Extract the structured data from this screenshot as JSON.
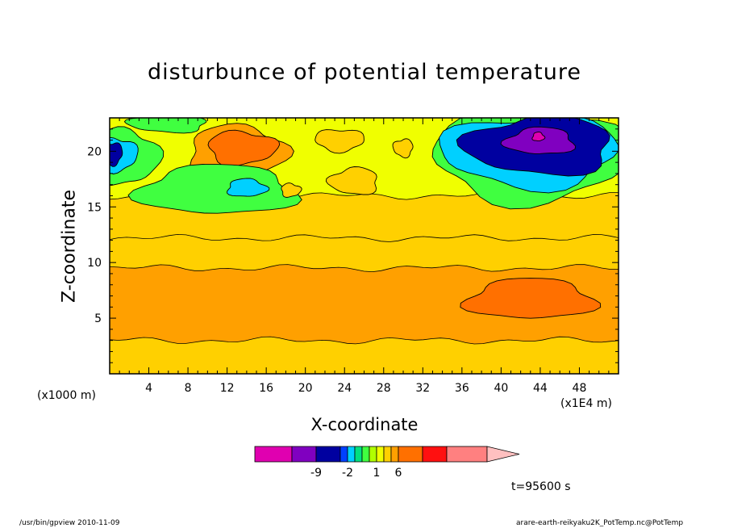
{
  "chart_data": {
    "type": "heatmap",
    "title": "disturbunce of potential temperature",
    "xlabel": "X-coordinate",
    "ylabel": "Z-coordinate",
    "x_unit": "(x1E4 m)",
    "y_unit": "(x1000 m)",
    "xlim": [
      0,
      52
    ],
    "ylim": [
      0,
      23
    ],
    "xticks": [
      4,
      8,
      12,
      16,
      20,
      24,
      28,
      32,
      36,
      40,
      44,
      48
    ],
    "yticks": [
      5,
      10,
      15,
      20
    ],
    "time_label": "t=95600 s",
    "colorbar": {
      "labels": [
        {
          "text": "-9",
          "level": -9
        },
        {
          "text": "-2",
          "level": -2
        },
        {
          "text": "1",
          "level": 1
        },
        {
          "text": "6",
          "level": 6
        }
      ],
      "colors": [
        "#e000b0",
        "#8000c0",
        "#0000a0",
        "#0040ff",
        "#00d0ff",
        "#00e080",
        "#40ff40",
        "#b0ff00",
        "#f0ff00",
        "#ffd000",
        "#ffa000",
        "#ff7000",
        "#ff1010",
        "#ff8080",
        "#ffc0c0"
      ]
    },
    "bands": [
      {
        "z_top": 3,
        "color": "#ffd000"
      },
      {
        "z_top": 9.5,
        "color": "#ffa000"
      },
      {
        "z_top": 12.2,
        "color": "#ffd000"
      },
      {
        "z_top": 16,
        "color": "#ffd000"
      },
      {
        "z_top": 23,
        "color": "#f0ff00"
      }
    ],
    "features": [
      {
        "x": 43,
        "z": 6.7,
        "rx": 6.5,
        "rz": 1.8,
        "color": "#ff7000"
      },
      {
        "x": 13,
        "z": 20,
        "rx": 5,
        "rz": 2.3,
        "color": "#ffa000"
      },
      {
        "x": 13.5,
        "z": 20.3,
        "rx": 3.5,
        "rz": 1.5,
        "color": "#ff7000"
      },
      {
        "x": 23.5,
        "z": 21,
        "rx": 2.5,
        "rz": 1,
        "color": "#ffd000"
      },
      {
        "x": 30,
        "z": 20.3,
        "rx": 1,
        "rz": 0.8,
        "color": "#ffd000"
      },
      {
        "x": 25,
        "z": 17.3,
        "rx": 2.5,
        "rz": 1.2,
        "color": "#ffd000"
      },
      {
        "x": 11,
        "z": 16.5,
        "rx": 8,
        "rz": 2.2,
        "color": "#40ff40"
      },
      {
        "x": 14,
        "z": 16.7,
        "rx": 2,
        "rz": 0.8,
        "color": "#00d0ff"
      },
      {
        "x": 18.5,
        "z": 16.5,
        "rx": 1,
        "rz": 0.6,
        "color": "#ffd000"
      },
      {
        "x": 43,
        "z": 19.5,
        "rx": 10,
        "rz": 4,
        "color": "#40ff40"
      },
      {
        "x": 43,
        "z": 20,
        "rx": 9,
        "rz": 3.2,
        "color": "#00d0ff"
      },
      {
        "x": 44,
        "z": 20.5,
        "rx": 7.5,
        "rz": 2.6,
        "color": "#0000a0"
      },
      {
        "x": 44,
        "z": 20.9,
        "rx": 3.5,
        "rz": 1.2,
        "color": "#8000c0"
      },
      {
        "x": 43.8,
        "z": 21.3,
        "rx": 0.6,
        "rz": 0.4,
        "color": "#e000b0"
      },
      {
        "x": 1.5,
        "z": 19.5,
        "rx": 3.5,
        "rz": 2.5,
        "color": "#40ff40"
      },
      {
        "x": 0.8,
        "z": 19.7,
        "rx": 2,
        "rz": 1.5,
        "color": "#00d0ff"
      },
      {
        "x": 0.3,
        "z": 19.8,
        "rx": 1,
        "rz": 1,
        "color": "#0000a0"
      },
      {
        "x": 6,
        "z": 22.5,
        "rx": 4,
        "rz": 0.8,
        "color": "#40ff40"
      }
    ]
  },
  "footer": {
    "left": "/usr/bin/gpview  2010-11-09",
    "right": "arare-earth-reikyaku2K_PotTemp.nc@PotTemp"
  }
}
